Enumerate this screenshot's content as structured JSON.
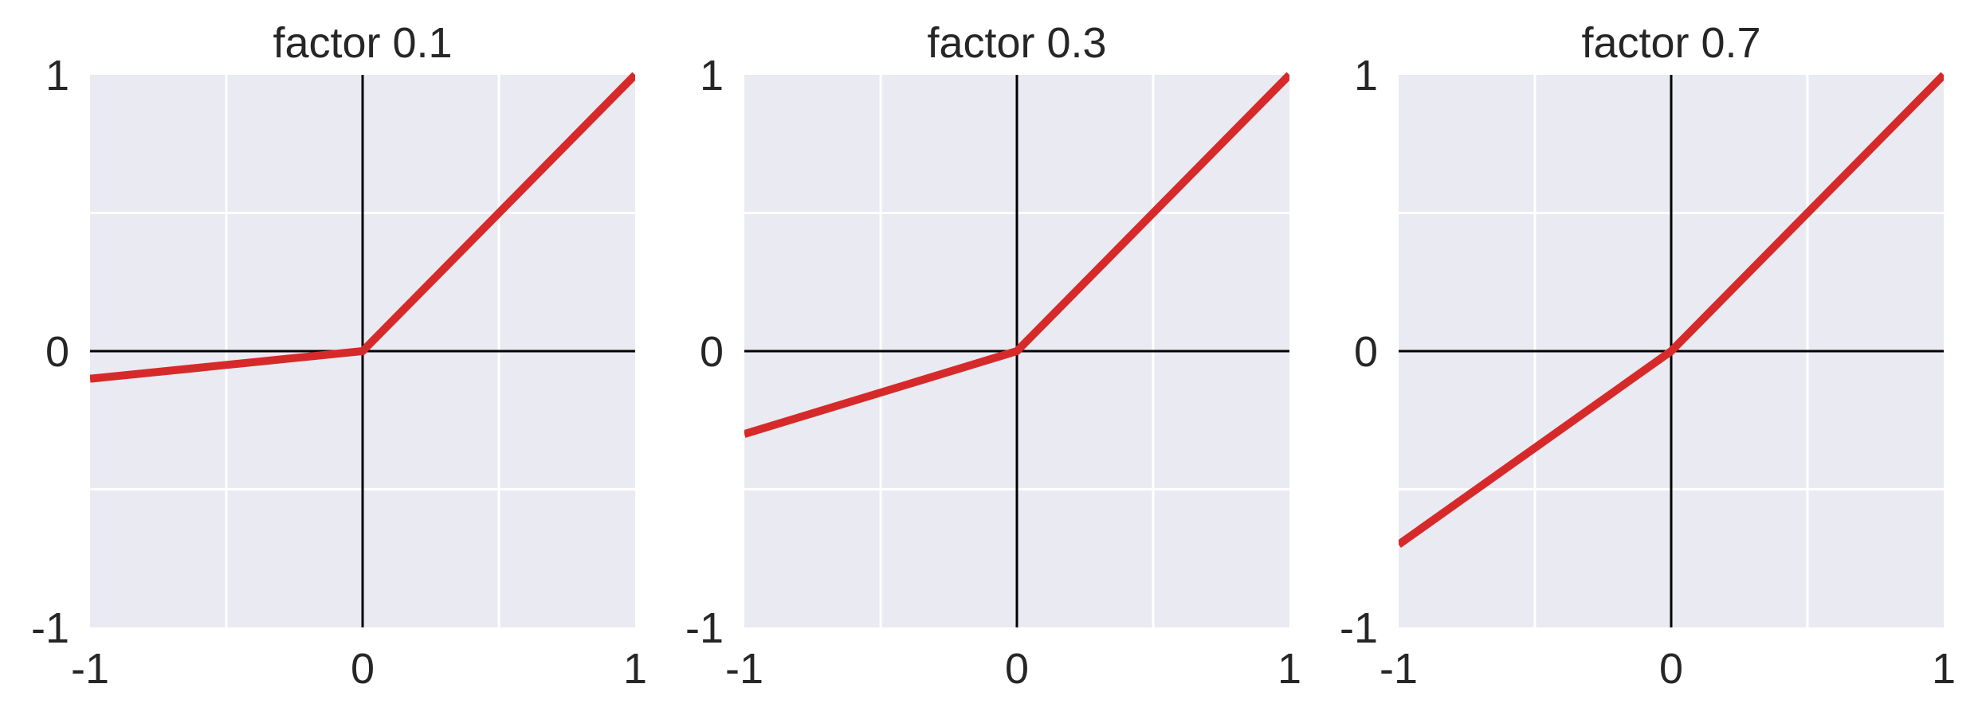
{
  "chart_data": [
    {
      "type": "line",
      "title": "factor 0.1",
      "xlabel": "",
      "ylabel": "",
      "xlim": [
        -1,
        1
      ],
      "ylim": [
        -1,
        1
      ],
      "xticks": [
        -1,
        0,
        1
      ],
      "yticks": [
        -1,
        0,
        1
      ],
      "xtick_labels": [
        "-1",
        "0",
        "1"
      ],
      "ytick_labels": [
        "-1",
        "0",
        "1"
      ],
      "grid": true,
      "series": [
        {
          "x": [
            -1,
            0,
            1
          ],
          "y": [
            -0.1,
            0,
            1
          ]
        }
      ]
    },
    {
      "type": "line",
      "title": "factor 0.3",
      "xlabel": "",
      "ylabel": "",
      "xlim": [
        -1,
        1
      ],
      "ylim": [
        -1,
        1
      ],
      "xticks": [
        -1,
        0,
        1
      ],
      "yticks": [
        -1,
        0,
        1
      ],
      "xtick_labels": [
        "-1",
        "0",
        "1"
      ],
      "ytick_labels": [
        "-1",
        "0",
        "1"
      ],
      "grid": true,
      "series": [
        {
          "x": [
            -1,
            0,
            1
          ],
          "y": [
            -0.3,
            0,
            1
          ]
        }
      ]
    },
    {
      "type": "line",
      "title": "factor 0.7",
      "xlabel": "",
      "ylabel": "",
      "xlim": [
        -1,
        1
      ],
      "ylim": [
        -1,
        1
      ],
      "xticks": [
        -1,
        0,
        1
      ],
      "yticks": [
        -1,
        0,
        1
      ],
      "xtick_labels": [
        "-1",
        "0",
        "1"
      ],
      "ytick_labels": [
        "-1",
        "0",
        "1"
      ],
      "grid": true,
      "series": [
        {
          "x": [
            -1,
            0,
            1
          ],
          "y": [
            -0.7,
            0,
            1
          ]
        }
      ]
    }
  ],
  "colors": {
    "axes_background": "#eaeaf2",
    "grid": "#ffffff",
    "zero_lines": "#000000",
    "series_line": "#d62a2a",
    "text": "#262626"
  }
}
